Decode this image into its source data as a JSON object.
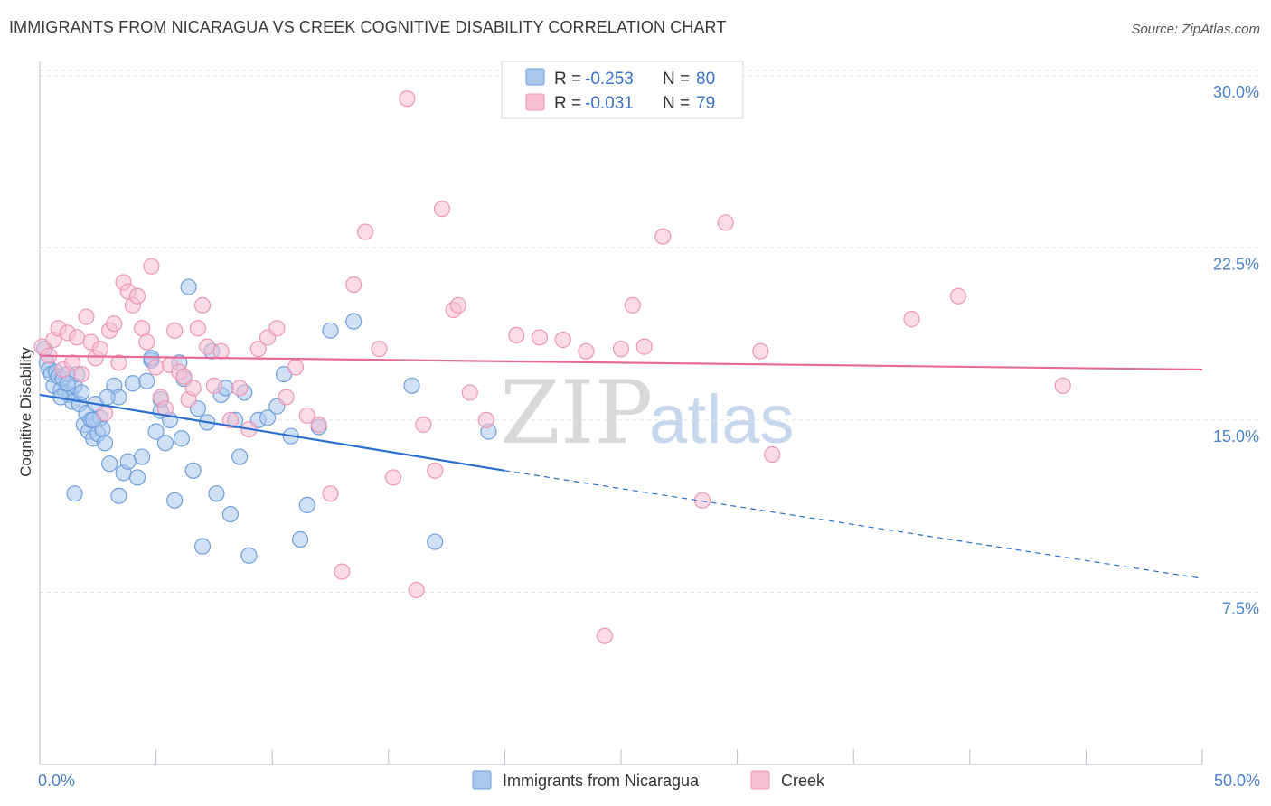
{
  "header": {
    "title": "IMMIGRANTS FROM NICARAGUA VS CREEK COGNITIVE DISABILITY CORRELATION CHART",
    "source": "Source: ZipAtlas.com"
  },
  "watermark": {
    "zip": "ZIP",
    "atlas": "atlas"
  },
  "stats": {
    "r_label": "R =",
    "n_label": "N =",
    "rows": [
      {
        "series": "nicaragua",
        "r": "-0.253",
        "n": "80"
      },
      {
        "series": "creek",
        "r": "-0.031",
        "n": "79"
      }
    ]
  },
  "colors": {
    "nicaragua_fill": "#a9c8ee",
    "nicaragua_stroke": "#6f9fdc",
    "nicaragua_line": "#2a6fd0",
    "creek_fill": "#f7bfd1",
    "creek_stroke": "#ec97b4",
    "creek_line": "#e76b97",
    "grid": "#dde2ea",
    "axis_text": "#4a80cc"
  },
  "chart_data": {
    "type": "scatter",
    "title": "IMMIGRANTS FROM NICARAGUA VS CREEK COGNITIVE DISABILITY CORRELATION CHART",
    "xlabel": "",
    "ylabel": "Cognitive Disability",
    "xlim": [
      0,
      50
    ],
    "ylim": [
      0,
      32
    ],
    "x_tick_labels": [
      {
        "value": 0,
        "label": "0.0%"
      },
      {
        "value": 50,
        "label": "50.0%"
      }
    ],
    "y_ticks": [
      {
        "value": 7.5,
        "label": "7.5%"
      },
      {
        "value": 15,
        "label": "15.0%"
      },
      {
        "value": 22.5,
        "label": "22.5%"
      },
      {
        "value": 30,
        "label": "30.0%"
      }
    ],
    "legend": [
      "Immigrants from Nicaragua",
      "Creek"
    ],
    "series": [
      {
        "name": "Immigrants from Nicaragua",
        "key": "nicaragua",
        "trend": {
          "x0": 0,
          "y0": 16.1,
          "x_solid_end": 20,
          "y_solid_end": 12.8,
          "x1": 50,
          "y1": 8.1
        },
        "points": [
          [
            0.2,
            18.1
          ],
          [
            0.3,
            17.5
          ],
          [
            0.4,
            17.2
          ],
          [
            0.5,
            17.0
          ],
          [
            0.6,
            16.5
          ],
          [
            0.7,
            17.1
          ],
          [
            0.8,
            16.9
          ],
          [
            0.9,
            16.3
          ],
          [
            1.0,
            16.8
          ],
          [
            1.1,
            16.2
          ],
          [
            1.2,
            17.0
          ],
          [
            1.3,
            16.1
          ],
          [
            1.4,
            15.8
          ],
          [
            1.5,
            16.5
          ],
          [
            1.6,
            17.0
          ],
          [
            1.7,
            15.7
          ],
          [
            1.8,
            16.2
          ],
          [
            1.9,
            14.8
          ],
          [
            2.0,
            15.3
          ],
          [
            2.1,
            14.5
          ],
          [
            2.2,
            15.0
          ],
          [
            2.3,
            14.2
          ],
          [
            2.4,
            15.7
          ],
          [
            2.5,
            14.4
          ],
          [
            2.6,
            15.1
          ],
          [
            2.7,
            14.6
          ],
          [
            2.8,
            14.0
          ],
          [
            3.0,
            13.1
          ],
          [
            3.2,
            16.5
          ],
          [
            3.4,
            16.0
          ],
          [
            3.6,
            12.7
          ],
          [
            3.8,
            13.2
          ],
          [
            4.0,
            16.6
          ],
          [
            4.2,
            12.5
          ],
          [
            4.4,
            13.4
          ],
          [
            4.6,
            16.7
          ],
          [
            4.8,
            17.6
          ],
          [
            5.0,
            14.5
          ],
          [
            5.2,
            15.4
          ],
          [
            5.4,
            14.0
          ],
          [
            5.6,
            15.0
          ],
          [
            5.8,
            11.5
          ],
          [
            6.0,
            17.5
          ],
          [
            6.2,
            16.8
          ],
          [
            6.4,
            20.8
          ],
          [
            6.6,
            12.8
          ],
          [
            6.8,
            15.5
          ],
          [
            7.0,
            9.5
          ],
          [
            7.2,
            14.9
          ],
          [
            7.4,
            18.0
          ],
          [
            7.6,
            11.8
          ],
          [
            7.8,
            16.1
          ],
          [
            8.0,
            16.4
          ],
          [
            8.2,
            10.9
          ],
          [
            8.4,
            15.0
          ],
          [
            8.6,
            13.4
          ],
          [
            8.8,
            16.2
          ],
          [
            9.0,
            9.1
          ],
          [
            9.4,
            15.0
          ],
          [
            9.8,
            15.1
          ],
          [
            10.2,
            15.6
          ],
          [
            10.5,
            17.0
          ],
          [
            10.8,
            14.3
          ],
          [
            11.2,
            9.8
          ],
          [
            11.5,
            11.3
          ],
          [
            12.0,
            14.7
          ],
          [
            12.5,
            18.9
          ],
          [
            13.5,
            19.3
          ],
          [
            16.0,
            16.5
          ],
          [
            17.0,
            9.7
          ],
          [
            19.3,
            14.5
          ],
          [
            2.9,
            16.0
          ],
          [
            1.5,
            11.8
          ],
          [
            3.4,
            11.7
          ],
          [
            5.2,
            15.9
          ],
          [
            4.8,
            17.7
          ],
          [
            2.3,
            15.0
          ],
          [
            0.9,
            16.0
          ],
          [
            6.1,
            14.2
          ],
          [
            1.2,
            16.6
          ]
        ]
      },
      {
        "name": "Creek",
        "key": "creek",
        "trend": {
          "x0": 0,
          "y0": 17.8,
          "x1": 50,
          "y1": 17.2
        },
        "points": [
          [
            0.1,
            18.2
          ],
          [
            0.4,
            17.8
          ],
          [
            0.6,
            18.5
          ],
          [
            0.8,
            19.0
          ],
          [
            1.0,
            17.2
          ],
          [
            1.2,
            18.8
          ],
          [
            1.4,
            17.5
          ],
          [
            1.6,
            18.6
          ],
          [
            1.8,
            17.0
          ],
          [
            2.0,
            19.5
          ],
          [
            2.2,
            18.4
          ],
          [
            2.4,
            17.7
          ],
          [
            2.6,
            18.1
          ],
          [
            2.8,
            15.3
          ],
          [
            3.0,
            18.9
          ],
          [
            3.2,
            19.2
          ],
          [
            3.4,
            17.5
          ],
          [
            3.6,
            21.0
          ],
          [
            3.8,
            20.6
          ],
          [
            4.0,
            20.0
          ],
          [
            4.2,
            20.4
          ],
          [
            4.4,
            19.0
          ],
          [
            4.6,
            18.4
          ],
          [
            4.8,
            21.7
          ],
          [
            5.0,
            17.3
          ],
          [
            5.2,
            16.0
          ],
          [
            5.4,
            15.5
          ],
          [
            5.6,
            17.4
          ],
          [
            5.8,
            18.9
          ],
          [
            6.0,
            17.1
          ],
          [
            6.2,
            16.9
          ],
          [
            6.4,
            15.9
          ],
          [
            6.6,
            16.4
          ],
          [
            6.8,
            19.0
          ],
          [
            7.0,
            20.0
          ],
          [
            7.2,
            18.2
          ],
          [
            7.5,
            16.5
          ],
          [
            7.8,
            18.0
          ],
          [
            8.2,
            15.0
          ],
          [
            8.6,
            16.4
          ],
          [
            9.0,
            14.6
          ],
          [
            9.4,
            18.1
          ],
          [
            9.8,
            18.6
          ],
          [
            10.2,
            19.0
          ],
          [
            10.6,
            16.0
          ],
          [
            11.0,
            17.3
          ],
          [
            11.5,
            15.2
          ],
          [
            12.0,
            14.8
          ],
          [
            12.5,
            11.8
          ],
          [
            13.0,
            8.4
          ],
          [
            13.5,
            20.9
          ],
          [
            14.0,
            23.2
          ],
          [
            14.6,
            18.1
          ],
          [
            15.2,
            12.5
          ],
          [
            15.8,
            29.0
          ],
          [
            16.2,
            7.6
          ],
          [
            16.5,
            14.8
          ],
          [
            17.0,
            12.8
          ],
          [
            17.3,
            24.2
          ],
          [
            17.8,
            19.8
          ],
          [
            18.0,
            20.0
          ],
          [
            18.5,
            16.2
          ],
          [
            19.2,
            15.0
          ],
          [
            20.5,
            18.7
          ],
          [
            21.5,
            18.6
          ],
          [
            22.5,
            18.5
          ],
          [
            23.5,
            18.0
          ],
          [
            24.3,
            5.6
          ],
          [
            25.0,
            18.1
          ],
          [
            25.5,
            20.0
          ],
          [
            26.0,
            18.2
          ],
          [
            26.8,
            23.0
          ],
          [
            28.5,
            11.5
          ],
          [
            29.5,
            23.6
          ],
          [
            31.0,
            18.0
          ],
          [
            31.5,
            13.5
          ],
          [
            37.5,
            19.4
          ],
          [
            39.5,
            20.4
          ],
          [
            44.0,
            16.5
          ]
        ]
      }
    ]
  }
}
